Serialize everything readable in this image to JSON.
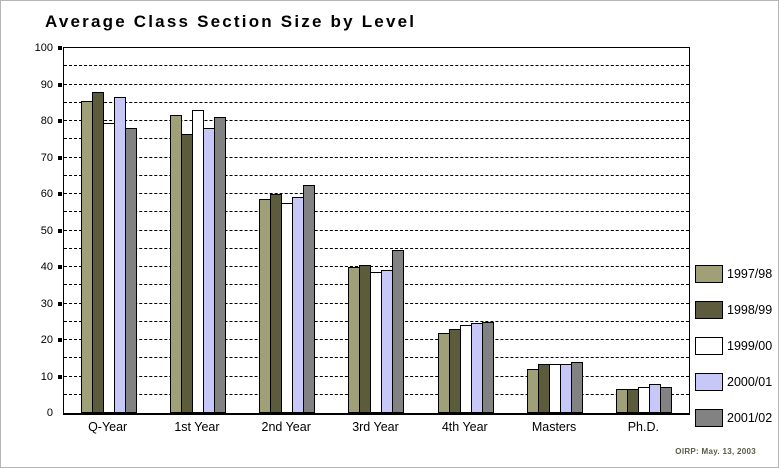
{
  "title": "Average Class Section Size by Level",
  "footer_note": "OIRP: May. 13, 2003",
  "chart_data": {
    "type": "bar",
    "title": "Average Class Section Size by Level",
    "categories": [
      "Q-Year",
      "1st Year",
      "2nd Year",
      "3rd Year",
      "4th Year",
      "Masters",
      "Ph.D."
    ],
    "series": [
      {
        "name": "1997/98",
        "color": "#a0a078",
        "values": [
          85,
          81,
          58,
          39.5,
          21.5,
          11.5,
          6
        ]
      },
      {
        "name": "1998/99",
        "color": "#5c5c3c",
        "values": [
          87.5,
          76,
          59.5,
          40,
          22.5,
          13,
          6
        ]
      },
      {
        "name": "1999/00",
        "color": "#ffffff",
        "values": [
          79,
          82.5,
          57,
          38,
          23.5,
          13,
          6.5
        ]
      },
      {
        "name": "2000/01",
        "color": "#c8c8f8",
        "values": [
          86,
          77.5,
          58.5,
          38.5,
          24,
          13,
          7.5
        ]
      },
      {
        "name": "2001/02",
        "color": "#828282",
        "values": [
          77.5,
          80.5,
          62,
          44,
          24.5,
          13.5,
          6.5
        ]
      }
    ],
    "xlabel": "",
    "ylabel": "",
    "ylim": [
      0,
      100
    ],
    "y_ticks": [
      0,
      10,
      20,
      30,
      40,
      50,
      60,
      70,
      80,
      90,
      100
    ],
    "gridline_step": 5,
    "grid": "horizontal-dashed",
    "legend_position": "right-outside"
  }
}
